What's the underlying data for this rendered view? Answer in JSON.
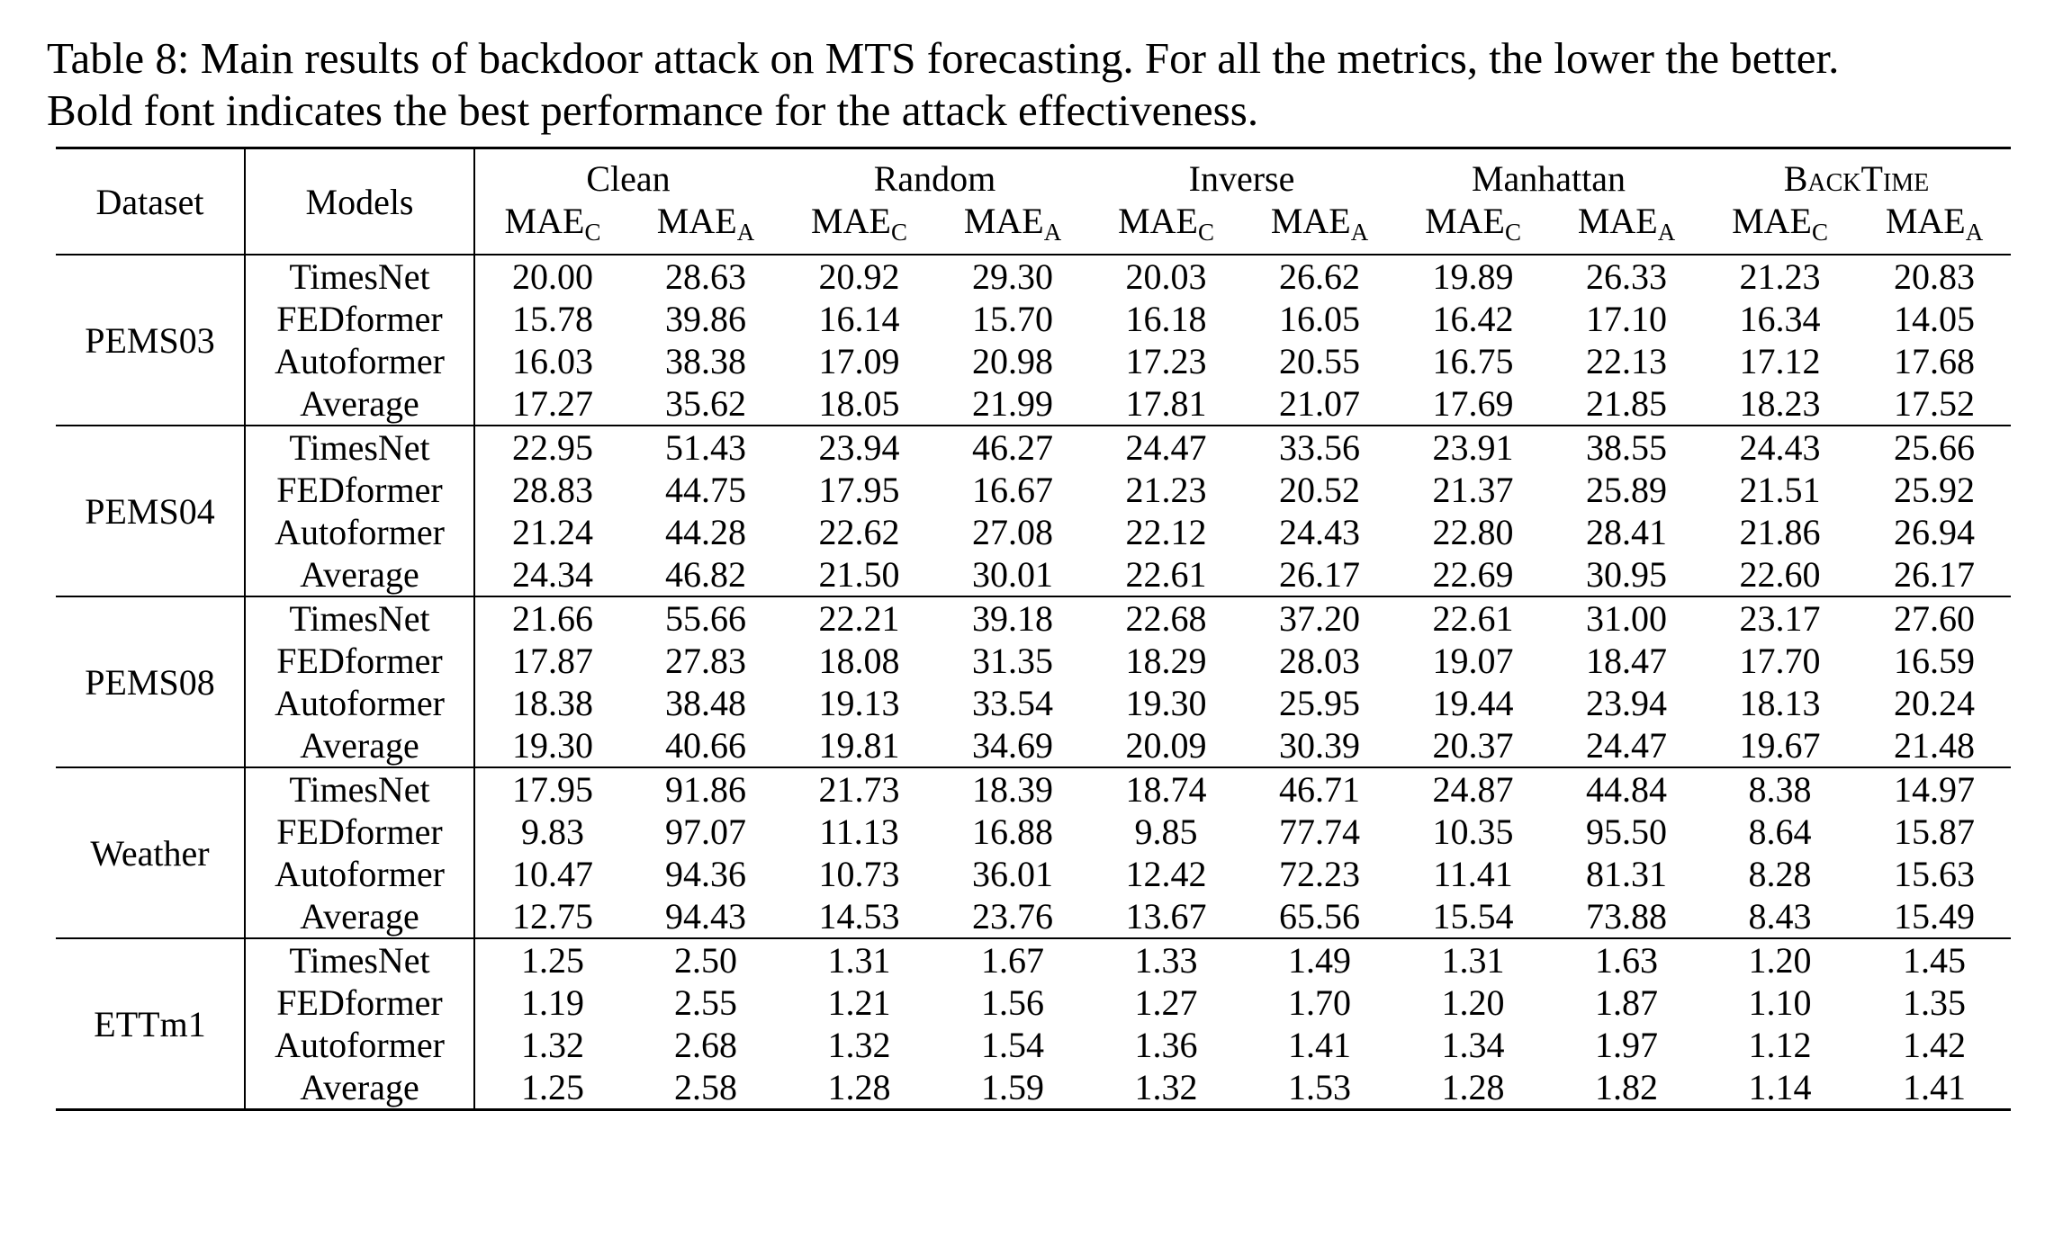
{
  "caption": {
    "line1": "Table 8: Main results of backdoor attack on MTS forecasting. For all the metrics, the lower the better.",
    "line2": "Bold font indicates the best performance for the attack effectiveness."
  },
  "header": {
    "dataset": "Dataset",
    "models": "Models",
    "methods": [
      "Clean",
      "Random",
      "Inverse",
      "Manhattan",
      "BackTime"
    ],
    "metric_base": "MAE",
    "metric_sub_c": "C",
    "metric_sub_a": "A"
  },
  "groups": [
    {
      "dataset": "PEMS03",
      "rows": [
        {
          "model": "TimesNet",
          "values": [
            "20.00",
            "28.63",
            "20.92",
            "29.30",
            "20.03",
            "26.62",
            "19.89",
            "26.33",
            "21.23",
            "20.83"
          ],
          "bold": [
            9
          ]
        },
        {
          "model": "FEDformer",
          "values": [
            "15.78",
            "39.86",
            "16.14",
            "15.70",
            "16.18",
            "16.05",
            "16.42",
            "17.10",
            "16.34",
            "14.05"
          ],
          "bold": [
            9
          ]
        },
        {
          "model": "Autoformer",
          "values": [
            "16.03",
            "38.38",
            "17.09",
            "20.98",
            "17.23",
            "20.55",
            "16.75",
            "22.13",
            "17.12",
            "17.68"
          ],
          "bold": [
            9
          ]
        },
        {
          "model": "Average",
          "values": [
            "17.27",
            "35.62",
            "18.05",
            "21.99",
            "17.81",
            "21.07",
            "17.69",
            "21.85",
            "18.23",
            "17.52"
          ],
          "bold": [
            9
          ]
        }
      ]
    },
    {
      "dataset": "PEMS04",
      "rows": [
        {
          "model": "TimesNet",
          "values": [
            "22.95",
            "51.43",
            "23.94",
            "46.27",
            "24.47",
            "33.56",
            "23.91",
            "38.55",
            "24.43",
            "25.66"
          ],
          "bold": [
            9
          ]
        },
        {
          "model": "FEDformer",
          "values": [
            "28.83",
            "44.75",
            "17.95",
            "16.67",
            "21.23",
            "20.52",
            "21.37",
            "25.89",
            "21.51",
            "25.92"
          ],
          "bold": [
            3
          ]
        },
        {
          "model": "Autoformer",
          "values": [
            "21.24",
            "44.28",
            "22.62",
            "27.08",
            "22.12",
            "24.43",
            "22.80",
            "28.41",
            "21.86",
            "26.94"
          ],
          "bold": [
            5
          ]
        },
        {
          "model": "Average",
          "values": [
            "24.34",
            "46.82",
            "21.50",
            "30.01",
            "22.61",
            "26.17",
            "22.69",
            "30.95",
            "22.60",
            "26.17"
          ],
          "bold": [
            5,
            9
          ]
        }
      ]
    },
    {
      "dataset": "PEMS08",
      "rows": [
        {
          "model": "TimesNet",
          "values": [
            "21.66",
            "55.66",
            "22.21",
            "39.18",
            "22.68",
            "37.20",
            "22.61",
            "31.00",
            "23.17",
            "27.60"
          ],
          "bold": [
            9
          ]
        },
        {
          "model": "FEDformer",
          "values": [
            "17.87",
            "27.83",
            "18.08",
            "31.35",
            "18.29",
            "28.03",
            "19.07",
            "18.47",
            "17.70",
            "16.59"
          ],
          "bold": [
            9
          ]
        },
        {
          "model": "Autoformer",
          "values": [
            "18.38",
            "38.48",
            "19.13",
            "33.54",
            "19.30",
            "25.95",
            "19.44",
            "23.94",
            "18.13",
            "20.24"
          ],
          "bold": [
            9
          ]
        },
        {
          "model": "Average",
          "values": [
            "19.30",
            "40.66",
            "19.81",
            "34.69",
            "20.09",
            "30.39",
            "20.37",
            "24.47",
            "19.67",
            "21.48"
          ],
          "bold": [
            9
          ]
        }
      ]
    },
    {
      "dataset": "Weather",
      "rows": [
        {
          "model": "TimesNet",
          "values": [
            "17.95",
            "91.86",
            "21.73",
            "18.39",
            "18.74",
            "46.71",
            "24.87",
            "44.84",
            "8.38",
            "14.97"
          ],
          "bold": [
            9
          ]
        },
        {
          "model": "FEDformer",
          "values": [
            "9.83",
            "97.07",
            "11.13",
            "16.88",
            "9.85",
            "77.74",
            "10.35",
            "95.50",
            "8.64",
            "15.87"
          ],
          "bold": [
            9
          ]
        },
        {
          "model": "Autoformer",
          "values": [
            "10.47",
            "94.36",
            "10.73",
            "36.01",
            "12.42",
            "72.23",
            "11.41",
            "81.31",
            "8.28",
            "15.63"
          ],
          "bold": [
            9
          ]
        },
        {
          "model": "Average",
          "values": [
            "12.75",
            "94.43",
            "14.53",
            "23.76",
            "13.67",
            "65.56",
            "15.54",
            "73.88",
            "8.43",
            "15.49"
          ],
          "bold": [
            9
          ]
        }
      ]
    },
    {
      "dataset": "ETTm1",
      "rows": [
        {
          "model": "TimesNet",
          "values": [
            "1.25",
            "2.50",
            "1.31",
            "1.67",
            "1.33",
            "1.49",
            "1.31",
            "1.63",
            "1.20",
            "1.45"
          ],
          "bold": [
            9
          ]
        },
        {
          "model": "FEDformer",
          "values": [
            "1.19",
            "2.55",
            "1.21",
            "1.56",
            "1.27",
            "1.70",
            "1.20",
            "1.87",
            "1.10",
            "1.35"
          ],
          "bold": [
            9
          ]
        },
        {
          "model": "Autoformer",
          "values": [
            "1.32",
            "2.68",
            "1.32",
            "1.54",
            "1.36",
            "1.41",
            "1.34",
            "1.97",
            "1.12",
            "1.42"
          ],
          "bold": [
            5
          ]
        },
        {
          "model": "Average",
          "values": [
            "1.25",
            "2.58",
            "1.28",
            "1.59",
            "1.32",
            "1.53",
            "1.28",
            "1.82",
            "1.14",
            "1.41"
          ],
          "bold": [
            9
          ]
        }
      ]
    }
  ]
}
